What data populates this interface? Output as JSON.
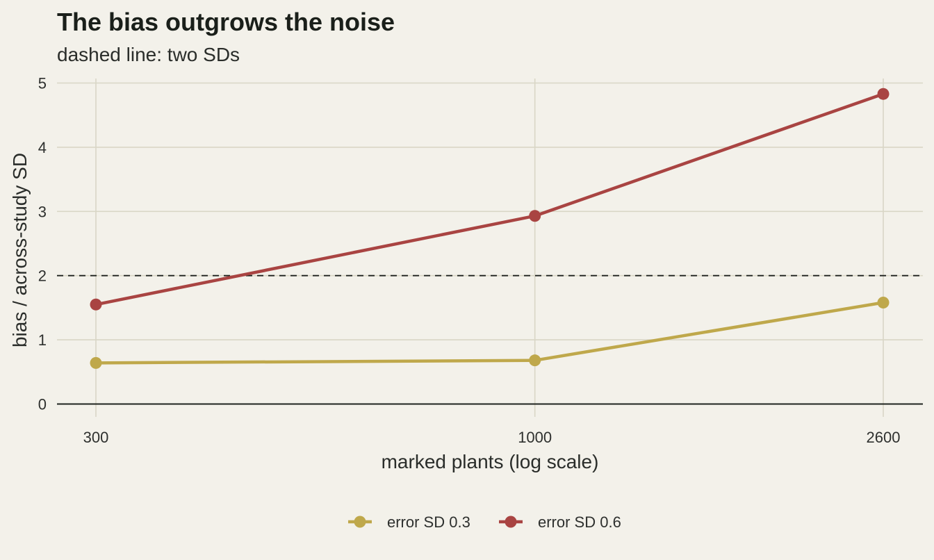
{
  "chart_data": {
    "type": "line",
    "title": "The bias outgrows the noise",
    "subtitle": "dashed line: two SDs",
    "xlabel": "marked plants (log scale)",
    "ylabel": "bias / across-study SD",
    "x_scale": "log",
    "x": [
      300,
      1000,
      2600
    ],
    "x_tick_labels": [
      "300",
      "1000",
      "2600"
    ],
    "ylim": [
      0,
      5
    ],
    "y_ticks": [
      0,
      1,
      2,
      3,
      4,
      5
    ],
    "y_tick_labels": [
      "0",
      "1",
      "2",
      "3",
      "4",
      "5"
    ],
    "reference_line": {
      "y": 2,
      "style": "dashed"
    },
    "grid": true,
    "legend_position": "bottom",
    "series": [
      {
        "name": "error SD 0.3",
        "color": "#bfa84b",
        "values": [
          0.64,
          0.68,
          1.58
        ]
      },
      {
        "name": "error SD 0.6",
        "color": "#a94442",
        "values": [
          1.55,
          2.93,
          4.83
        ]
      }
    ]
  }
}
